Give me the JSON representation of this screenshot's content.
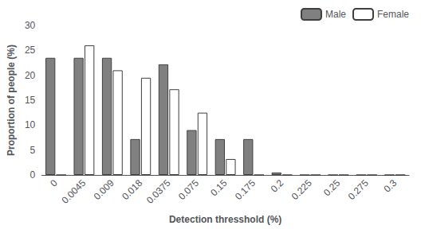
{
  "chart_data": {
    "type": "bar",
    "categories": [
      "0",
      "0.0045",
      "0.009",
      "0.018",
      "0.0375",
      "0.075",
      "0.15",
      "0.175",
      "0.2",
      "0.225",
      "0.25",
      "0.275",
      "0.3"
    ],
    "series": [
      {
        "name": "Male",
        "color": "#808080",
        "values": [
          23.5,
          23.5,
          23.5,
          7.2,
          22.2,
          9.0,
          7.2,
          7.2,
          0.5,
          0,
          0,
          0,
          0
        ]
      },
      {
        "name": "Female",
        "color": "#ffffff",
        "values": [
          0,
          26.0,
          21.0,
          19.5,
          17.2,
          12.5,
          3.2,
          0,
          0,
          0,
          0,
          0,
          0
        ]
      }
    ],
    "xlabel": "Detection thresshold (%)",
    "ylabel": "Proportion of people (%)",
    "ylim": [
      0,
      30
    ],
    "yticks": [
      0,
      5,
      10,
      15,
      20,
      25,
      30
    ],
    "legend": "upper right",
    "grid": false
  }
}
